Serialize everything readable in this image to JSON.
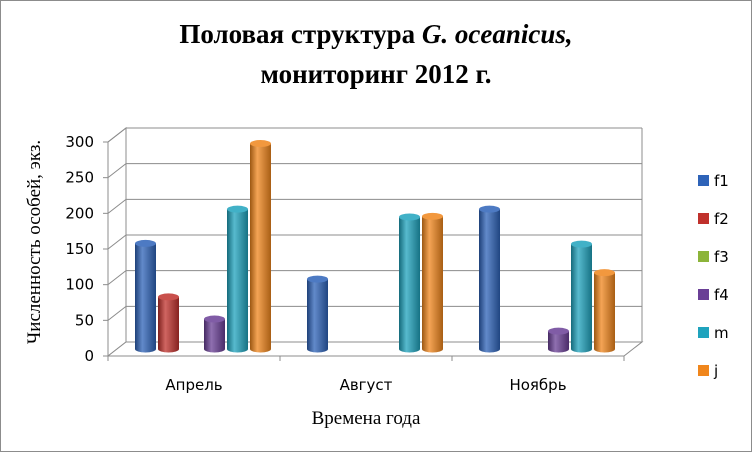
{
  "chart_data": {
    "type": "bar",
    "title_line1_a": "Половая структура ",
    "title_line1_b": "G. oceanicus,",
    "title_line2": "мониторинг 2012 г.",
    "xlabel": "Времена года",
    "ylabel": "Численность особей, экз.",
    "categories": [
      "Апрель",
      "Август",
      "Ноябрь"
    ],
    "ylim": [
      0,
      300
    ],
    "yticks": [
      0,
      50,
      100,
      150,
      200,
      250,
      300
    ],
    "grid": true,
    "legend_position": "right",
    "series": [
      {
        "name": "f1",
        "color": "#2e63b8",
        "values": [
          148,
          98,
          196
        ]
      },
      {
        "name": "f2",
        "color": "#c0312c",
        "values": [
          73,
          0,
          0
        ]
      },
      {
        "name": "f3",
        "color": "#8cb43a",
        "values": [
          0,
          0,
          0
        ]
      },
      {
        "name": "f4",
        "color": "#6a3f96",
        "values": [
          42,
          0,
          25
        ]
      },
      {
        "name": "m",
        "color": "#1fa3bd",
        "values": [
          196,
          185,
          147
        ]
      },
      {
        "name": "j",
        "color": "#f0861c",
        "values": [
          288,
          186,
          107
        ]
      }
    ]
  }
}
